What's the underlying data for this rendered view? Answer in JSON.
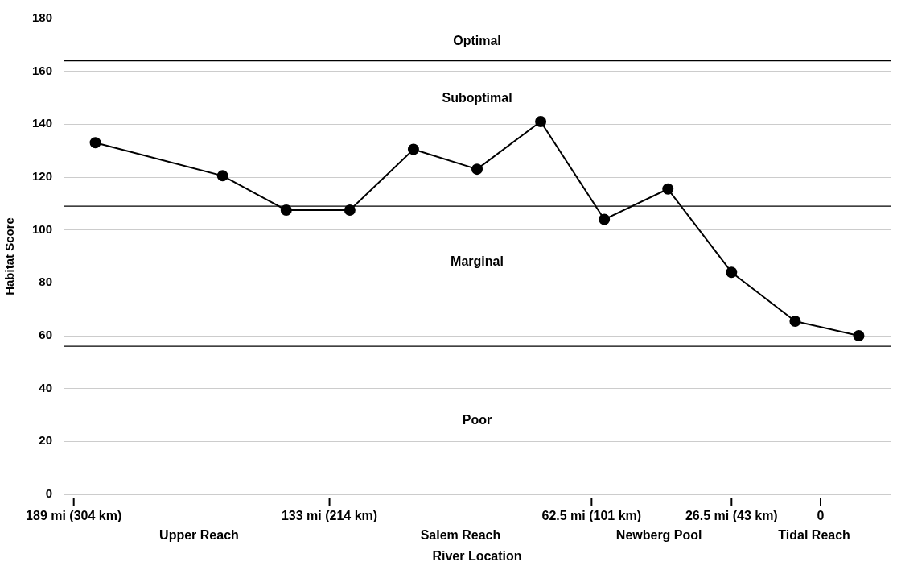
{
  "chart_data": {
    "type": "line",
    "xlabel": "River Location",
    "ylabel": "Habitat Score",
    "categories": [
      null,
      null,
      null,
      null,
      null,
      null,
      null,
      null,
      null,
      null,
      null,
      null,
      null
    ],
    "series": [
      {
        "color": "#000000",
        "values": [
          133,
          null,
          120.5,
          107.5,
          107.5,
          130.5,
          123,
          141,
          104,
          115.5,
          84,
          65.5,
          60
        ]
      }
    ],
    "ylim": [
      0,
      180
    ],
    "yticks": [
      0,
      20,
      40,
      60,
      80,
      100,
      120,
      140,
      160,
      180
    ],
    "grid": "y",
    "legend": false,
    "marker": "circle",
    "line_style": "solid",
    "ref_lines": [
      {
        "axis": "y",
        "value": 164,
        "color": "#000000"
      },
      {
        "axis": "y",
        "value": 109,
        "color": "#000000"
      },
      {
        "axis": "y",
        "value": 56,
        "color": "#000000"
      }
    ],
    "annotations": [
      "Optimal",
      "Suboptimal",
      "Marginal",
      "Poor",
      "189 mi (304 km)",
      "133 mi (214 km)",
      "62.5 mi (101 km)",
      "26.5 mi (43 km)",
      "0",
      "Upper Reach",
      "Salem Reach",
      "Newberg Pool",
      "Tidal Reach"
    ]
  }
}
